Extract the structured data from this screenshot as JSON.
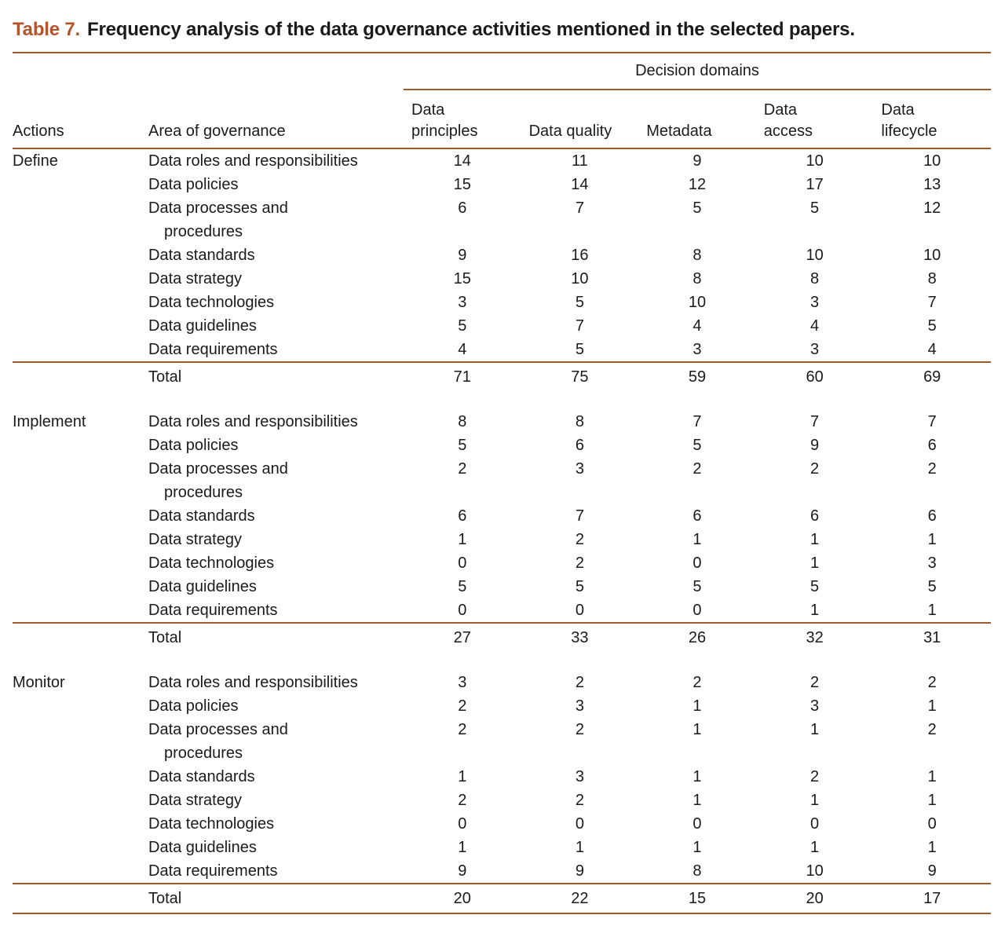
{
  "title": {
    "label": "Table 7.",
    "text": "Frequency analysis of the data governance activities mentioned in the selected papers."
  },
  "colors": {
    "accent": "#b5532b",
    "rule": "#a05a2c",
    "text": "#1b1b1b"
  },
  "table": {
    "spanner": "Decision domains",
    "columns": [
      "Actions",
      "Area of governance",
      "Data\nprinciples",
      "Data quality",
      "Metadata",
      "Data\naccess",
      "Data\nlifecycle"
    ],
    "sections": [
      {
        "action": "Define",
        "rows": [
          {
            "area": "Data roles and responsibilities",
            "values": [
              14,
              11,
              9,
              10,
              10
            ]
          },
          {
            "area": "Data policies",
            "values": [
              15,
              14,
              12,
              17,
              13
            ]
          },
          {
            "area": "Data processes and\nprocedures",
            "values": [
              6,
              7,
              5,
              5,
              12
            ]
          },
          {
            "area": "Data standards",
            "values": [
              9,
              16,
              8,
              10,
              10
            ]
          },
          {
            "area": "Data strategy",
            "values": [
              15,
              10,
              8,
              8,
              8
            ]
          },
          {
            "area": "Data technologies",
            "values": [
              3,
              5,
              10,
              3,
              7
            ]
          },
          {
            "area": "Data guidelines",
            "values": [
              5,
              7,
              4,
              4,
              5
            ]
          },
          {
            "area": "Data requirements",
            "values": [
              4,
              5,
              3,
              3,
              4
            ]
          }
        ],
        "total": {
          "label": "Total",
          "values": [
            71,
            75,
            59,
            60,
            69
          ]
        }
      },
      {
        "action": "Implement",
        "rows": [
          {
            "area": "Data roles and responsibilities",
            "values": [
              8,
              8,
              7,
              7,
              7
            ]
          },
          {
            "area": "Data policies",
            "values": [
              5,
              6,
              5,
              9,
              6
            ]
          },
          {
            "area": "Data processes and\nprocedures",
            "values": [
              2,
              3,
              2,
              2,
              2
            ]
          },
          {
            "area": "Data standards",
            "values": [
              6,
              7,
              6,
              6,
              6
            ]
          },
          {
            "area": "Data strategy",
            "values": [
              1,
              2,
              1,
              1,
              1
            ]
          },
          {
            "area": "Data technologies",
            "values": [
              0,
              2,
              0,
              1,
              3
            ]
          },
          {
            "area": "Data guidelines",
            "values": [
              5,
              5,
              5,
              5,
              5
            ]
          },
          {
            "area": "Data requirements",
            "values": [
              0,
              0,
              0,
              1,
              1
            ]
          }
        ],
        "total": {
          "label": "Total",
          "values": [
            27,
            33,
            26,
            32,
            31
          ]
        }
      },
      {
        "action": "Monitor",
        "rows": [
          {
            "area": "Data roles and responsibilities",
            "values": [
              3,
              2,
              2,
              2,
              2
            ]
          },
          {
            "area": "Data policies",
            "values": [
              2,
              3,
              1,
              3,
              1
            ]
          },
          {
            "area": "Data processes and\nprocedures",
            "values": [
              2,
              2,
              1,
              1,
              2
            ]
          },
          {
            "area": "Data standards",
            "values": [
              1,
              3,
              1,
              2,
              1
            ]
          },
          {
            "area": "Data strategy",
            "values": [
              2,
              2,
              1,
              1,
              1
            ]
          },
          {
            "area": "Data technologies",
            "values": [
              0,
              0,
              0,
              0,
              0
            ]
          },
          {
            "area": "Data guidelines",
            "values": [
              1,
              1,
              1,
              1,
              1
            ]
          },
          {
            "area": "Data requirements",
            "values": [
              9,
              9,
              8,
              10,
              9
            ]
          }
        ],
        "total": {
          "label": "Total",
          "values": [
            20,
            22,
            15,
            20,
            17
          ]
        }
      }
    ]
  }
}
